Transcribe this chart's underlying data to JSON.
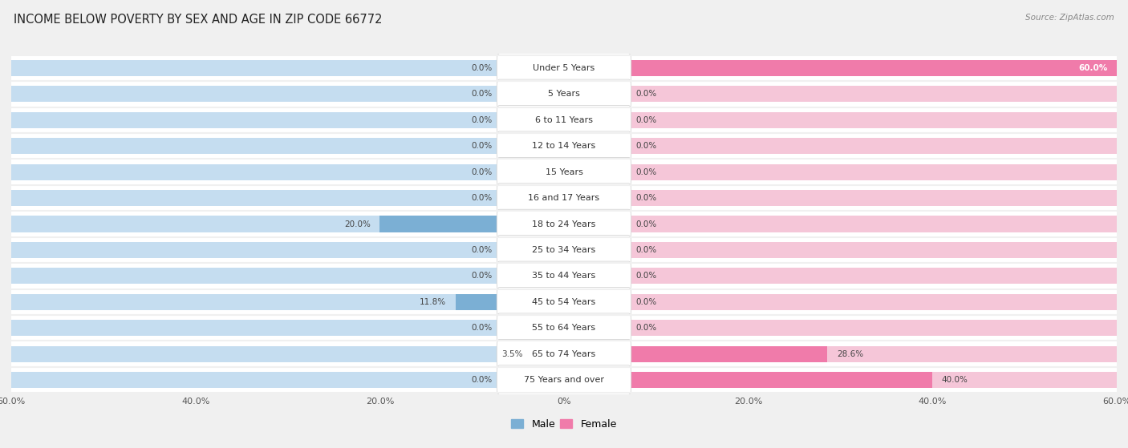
{
  "title": "INCOME BELOW POVERTY BY SEX AND AGE IN ZIP CODE 66772",
  "source": "Source: ZipAtlas.com",
  "categories": [
    "Under 5 Years",
    "5 Years",
    "6 to 11 Years",
    "12 to 14 Years",
    "15 Years",
    "16 and 17 Years",
    "18 to 24 Years",
    "25 to 34 Years",
    "35 to 44 Years",
    "45 to 54 Years",
    "55 to 64 Years",
    "65 to 74 Years",
    "75 Years and over"
  ],
  "male_values": [
    0.0,
    0.0,
    0.0,
    0.0,
    0.0,
    0.0,
    20.0,
    0.0,
    0.0,
    11.8,
    0.0,
    3.5,
    0.0
  ],
  "female_values": [
    60.0,
    0.0,
    0.0,
    0.0,
    0.0,
    0.0,
    0.0,
    0.0,
    0.0,
    0.0,
    0.0,
    28.6,
    40.0
  ],
  "male_color": "#7bafd4",
  "female_color": "#f07baa",
  "axis_limit": 60.0,
  "background_color": "#f0f0f0",
  "row_bg_color": "#e8e8e8",
  "bar_bg_male": "#c5ddf0",
  "bar_bg_female": "#f5c6d8",
  "title_fontsize": 10.5,
  "label_fontsize": 8,
  "tick_fontsize": 8,
  "legend_fontsize": 9,
  "value_fontsize": 7.5
}
